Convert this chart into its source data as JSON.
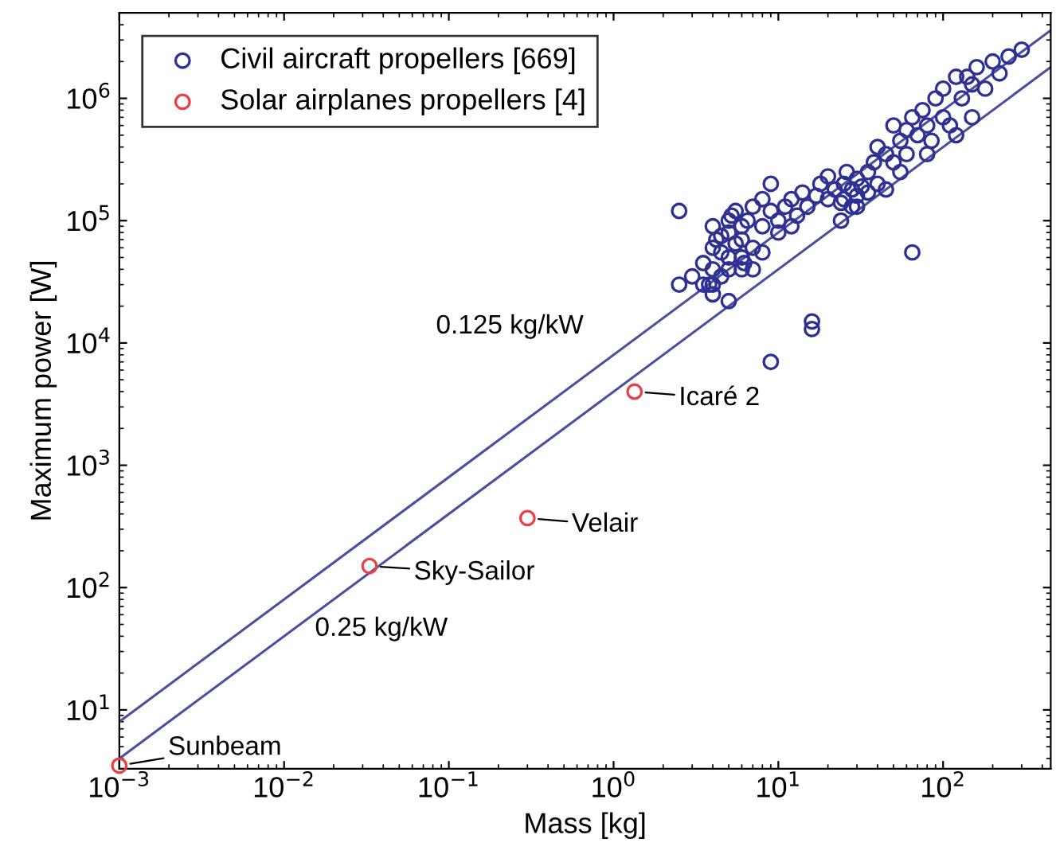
{
  "chart_data": {
    "type": "scatter",
    "xlabel": "Mass [kg]",
    "ylabel": "Maximum power [W]",
    "log": "xy",
    "grid": false,
    "legend": "top left",
    "xlim": [
      0.001,
      450
    ],
    "ylim": [
      3.3,
      5000000
    ],
    "xticks": [
      {
        "value": 0.001,
        "label": "10$^{−3}$"
      },
      {
        "value": 0.01,
        "label": "10$^{−2}$"
      },
      {
        "value": 0.1,
        "label": "10$^{−1}$"
      },
      {
        "value": 1,
        "label": "10$^{0}$"
      },
      {
        "value": 10,
        "label": "10$^{1}$"
      },
      {
        "value": 100,
        "label": "10$^{2}$"
      }
    ],
    "yticks": [
      {
        "value": 10,
        "label": "10$^{1}$"
      },
      {
        "value": 100,
        "label": "10$^{2}$"
      },
      {
        "value": 1000,
        "label": "10$^{3}$"
      },
      {
        "value": 10000,
        "label": "10$^{4}$"
      },
      {
        "value": 100000,
        "label": "10$^{5}$"
      },
      {
        "value": 1000000,
        "label": "10$^{6}$"
      }
    ],
    "series": [
      {
        "name": "Civil aircraft propellers [669]",
        "color": "#2e3192",
        "marker": "circle",
        "x": [
          2.5,
          2.5,
          3,
          3.5,
          3.5,
          4,
          4,
          4,
          4,
          4,
          4.5,
          4.5,
          4.5,
          5,
          5,
          5,
          5,
          5,
          5.5,
          5.5,
          6,
          6,
          6,
          6,
          6.5,
          7,
          7,
          7,
          8,
          8,
          8,
          9,
          9,
          10,
          10,
          11,
          12,
          13,
          14,
          15,
          16,
          16,
          17,
          18,
          20,
          20,
          22,
          24,
          25,
          25,
          26,
          28,
          28,
          30,
          30,
          32,
          35,
          35,
          38,
          40,
          40,
          45,
          50,
          50,
          55,
          55,
          60,
          60,
          65,
          65,
          70,
          75,
          80,
          85,
          90,
          100,
          100,
          110,
          120,
          130,
          140,
          150,
          150,
          160,
          180,
          200,
          220,
          250,
          300,
          4.2,
          5.2,
          6.2,
          12,
          9,
          3.8,
          30,
          24,
          45,
          80,
          120
        ],
        "values": [
          120000,
          30000,
          35000,
          45000,
          30000,
          60000,
          40000,
          30000,
          90000,
          25000,
          55000,
          75000,
          35000,
          50000,
          80000,
          100000,
          40000,
          22000,
          65000,
          120000,
          50000,
          90000,
          40000,
          70000,
          100000,
          60000,
          130000,
          40000,
          90000,
          150000,
          55000,
          120000,
          7000,
          100000,
          80000,
          130000,
          150000,
          110000,
          170000,
          130000,
          15000,
          13000,
          160000,
          200000,
          150000,
          230000,
          180000,
          140000,
          200000,
          150000,
          250000,
          180000,
          130000,
          220000,
          160000,
          190000,
          250000,
          170000,
          300000,
          400000,
          200000,
          350000,
          300000,
          600000,
          450000,
          250000,
          550000,
          350000,
          700000,
          55000,
          500000,
          800000,
          600000,
          450000,
          1000000,
          700000,
          1200000,
          600000,
          1500000,
          1000000,
          1500000,
          700000,
          1300000,
          1800000,
          1200000,
          2000000,
          1600000,
          2200000,
          2500000,
          70000,
          110000,
          45000,
          90000,
          200000,
          30000,
          130000,
          100000,
          180000,
          350000,
          500000
        ]
      },
      {
        "name": "Solar airplanes propellers [4]",
        "color": "#e8414b",
        "marker": "circle",
        "x": [
          0.001,
          0.033,
          0.3,
          1.34
        ],
        "values": [
          3.5,
          150,
          370,
          4000
        ]
      },
      {
        "type": "line",
        "color": "#4a4fa0",
        "x": [
          0.001,
          450
        ],
        "values": [
          8,
          3600000
        ]
      },
      {
        "type": "line",
        "color": "#4a4fa0",
        "x": [
          0.001,
          450
        ],
        "values": [
          4,
          1800000
        ]
      }
    ],
    "annotations": [
      "0.125 kg/kW",
      "0.25 kg/kW",
      {
        "text": "Icaré 2",
        "x": 1.34,
        "y": 4000
      },
      {
        "text": "Velair",
        "x": 0.3,
        "y": 370
      },
      {
        "text": "Sky-Sailor",
        "x": 0.033,
        "y": 150
      },
      {
        "text": "Sunbeam",
        "x": 0.001,
        "y": 3.5
      }
    ]
  }
}
